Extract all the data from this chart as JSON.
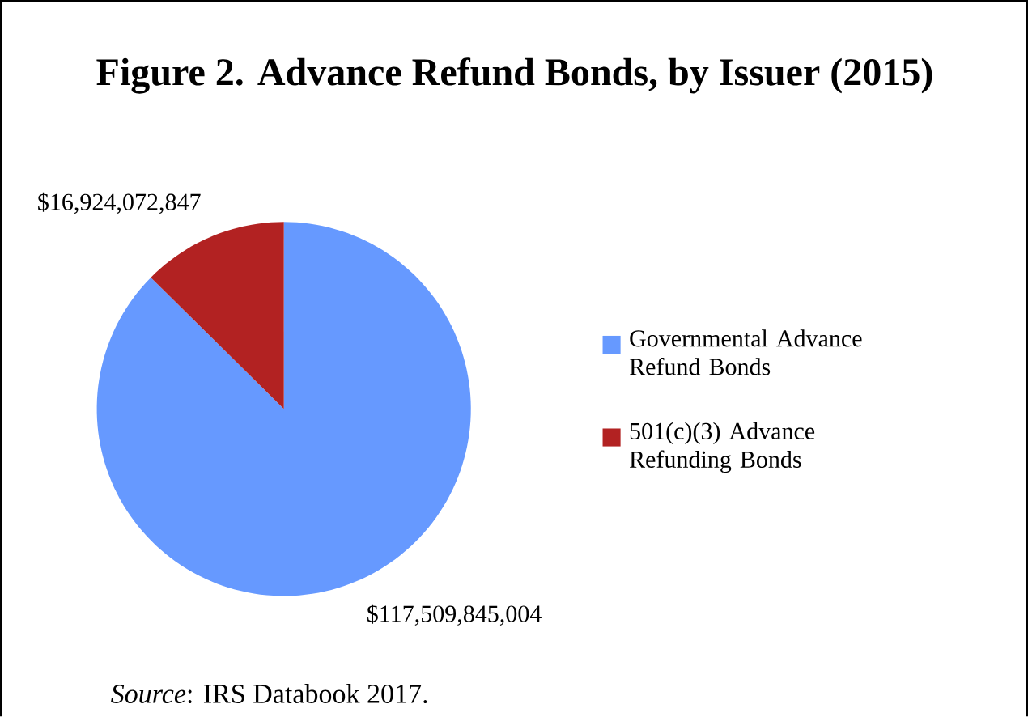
{
  "chart_data": {
    "type": "pie",
    "title": "Figure 2. Advance Refund Bonds, by Issuer (2015)",
    "categories": [
      "Governmental Advance Refund Bonds",
      "501(c)(3) Advance Refunding Bonds"
    ],
    "values": [
      117509845004,
      16924072847
    ],
    "colors": [
      "#6699ff",
      "#b22222"
    ],
    "value_labels": [
      "$117,509,845,004",
      "$16,924,072,847"
    ],
    "legend": "right",
    "annotations": [
      "*Source*: IRS Databook 2017."
    ]
  }
}
